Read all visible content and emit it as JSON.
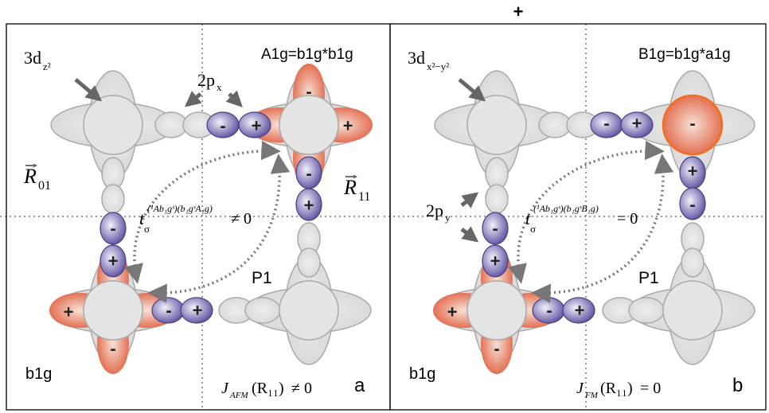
{
  "header": {
    "plus": "+"
  },
  "panels": [
    {
      "orbital": "3d",
      "orbital_sub": "z²",
      "symmetry": "A1g=b1g*b1g",
      "p_orbital": "2p",
      "p_sub": "x",
      "vectors": [
        {
          "symbol": "R",
          "sub": "01"
        },
        {
          "symbol": "R",
          "sub": "11"
        }
      ],
      "hopping": {
        "symbol": "t",
        "sub": "σ",
        "arg": "(¹Ab₁gˢ)(b₁gˢA₁g)",
        "relation": "≠ 0"
      },
      "site": "P1",
      "irrep": "b1g",
      "coupling": {
        "symbol": "J",
        "sub": "AFM",
        "arg": "(R₁₁)",
        "relation": "≠ 0"
      },
      "label": "a",
      "signs": [
        "-",
        "+",
        "-",
        "+",
        "-",
        "+",
        "-",
        "+",
        "-",
        "+",
        "+",
        "-"
      ]
    },
    {
      "orbital": "3d",
      "orbital_sub": "x²−y²",
      "symmetry": "B1g=b1g*a1g",
      "p_orbital": "2p",
      "p_sub": "y",
      "hopping": {
        "symbol": "t",
        "sub": "σ",
        "arg": "(¹Ab₁gˢ)(b₁gˢB₁g)",
        "relation": "= 0"
      },
      "site": "P1",
      "irrep": "b1g",
      "coupling": {
        "symbol": "J",
        "sub": "FM",
        "arg": "(R₁₁)",
        "relation": "= 0"
      },
      "label": "b",
      "signs": [
        "-",
        "+",
        "-",
        "+",
        "-",
        "-",
        "+",
        "-",
        "+",
        "+",
        "-"
      ]
    }
  ]
}
